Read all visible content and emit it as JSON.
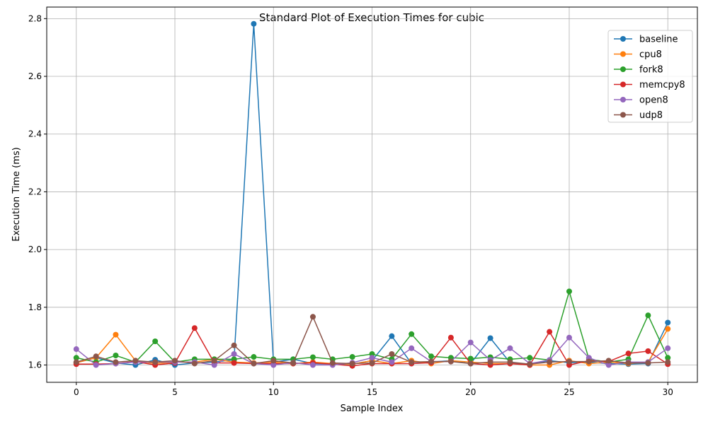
{
  "chart_data": {
    "type": "line",
    "title": "Standard Plot of Execution Times for cubic",
    "xlabel": "Sample Index",
    "ylabel": "Execution Time (ms)",
    "xlim": [
      -1.5,
      31.5
    ],
    "ylim": [
      1.54,
      2.84
    ],
    "xticks": [
      0,
      5,
      10,
      15,
      20,
      25,
      30
    ],
    "yticks": [
      1.6,
      1.8,
      2.0,
      2.2,
      2.4,
      2.6,
      2.8
    ],
    "grid": true,
    "legend_position": "top-right",
    "x": [
      0,
      1,
      2,
      3,
      4,
      5,
      6,
      7,
      8,
      9,
      10,
      11,
      12,
      13,
      14,
      15,
      16,
      17,
      18,
      19,
      20,
      21,
      22,
      23,
      24,
      25,
      26,
      27,
      28,
      29,
      30
    ],
    "series": [
      {
        "name": "baseline",
        "color": "#1f77b4",
        "values": [
          1.608,
          1.625,
          1.607,
          1.6,
          1.618,
          1.6,
          1.607,
          1.61,
          1.618,
          2.782,
          1.61,
          1.62,
          1.605,
          1.603,
          1.603,
          1.615,
          1.7,
          1.605,
          1.61,
          1.615,
          1.605,
          1.693,
          1.608,
          1.603,
          1.615,
          1.608,
          1.61,
          1.605,
          1.603,
          1.605,
          1.747
        ]
      },
      {
        "name": "cpu8",
        "color": "#ff7f0e",
        "values": [
          1.608,
          1.625,
          1.705,
          1.615,
          1.605,
          1.61,
          1.61,
          1.62,
          1.61,
          1.607,
          1.61,
          1.605,
          1.61,
          1.605,
          1.603,
          1.615,
          1.605,
          1.615,
          1.605,
          1.615,
          1.61,
          1.605,
          1.605,
          1.6,
          1.6,
          1.615,
          1.605,
          1.61,
          1.605,
          1.61,
          1.725
        ]
      },
      {
        "name": "fork8",
        "color": "#2ca02c",
        "values": [
          1.625,
          1.61,
          1.633,
          1.61,
          1.682,
          1.61,
          1.62,
          1.62,
          1.62,
          1.628,
          1.62,
          1.62,
          1.627,
          1.62,
          1.628,
          1.638,
          1.62,
          1.707,
          1.63,
          1.625,
          1.622,
          1.627,
          1.62,
          1.625,
          1.617,
          1.855,
          1.62,
          1.61,
          1.62,
          1.772,
          1.625
        ]
      },
      {
        "name": "memcpy8",
        "color": "#d62728",
        "values": [
          1.603,
          1.603,
          1.605,
          1.612,
          1.6,
          1.607,
          1.728,
          1.607,
          1.607,
          1.605,
          1.605,
          1.605,
          1.607,
          1.603,
          1.597,
          1.605,
          1.605,
          1.605,
          1.608,
          1.695,
          1.605,
          1.6,
          1.605,
          1.6,
          1.715,
          1.6,
          1.615,
          1.612,
          1.64,
          1.648,
          1.603
        ]
      },
      {
        "name": "open8",
        "color": "#9467bd",
        "values": [
          1.655,
          1.6,
          1.605,
          1.61,
          1.61,
          1.61,
          1.61,
          1.6,
          1.638,
          1.605,
          1.6,
          1.608,
          1.6,
          1.6,
          1.608,
          1.625,
          1.61,
          1.658,
          1.612,
          1.612,
          1.678,
          1.617,
          1.658,
          1.605,
          1.617,
          1.695,
          1.625,
          1.6,
          1.61,
          1.61,
          1.658
        ]
      },
      {
        "name": "udp8",
        "color": "#8c564b",
        "values": [
          1.61,
          1.63,
          1.61,
          1.615,
          1.61,
          1.615,
          1.605,
          1.615,
          1.668,
          1.605,
          1.615,
          1.607,
          1.767,
          1.607,
          1.605,
          1.607,
          1.638,
          1.61,
          1.612,
          1.612,
          1.605,
          1.61,
          1.61,
          1.603,
          1.61,
          1.612,
          1.612,
          1.615,
          1.607,
          1.607,
          1.61
        ]
      }
    ]
  }
}
